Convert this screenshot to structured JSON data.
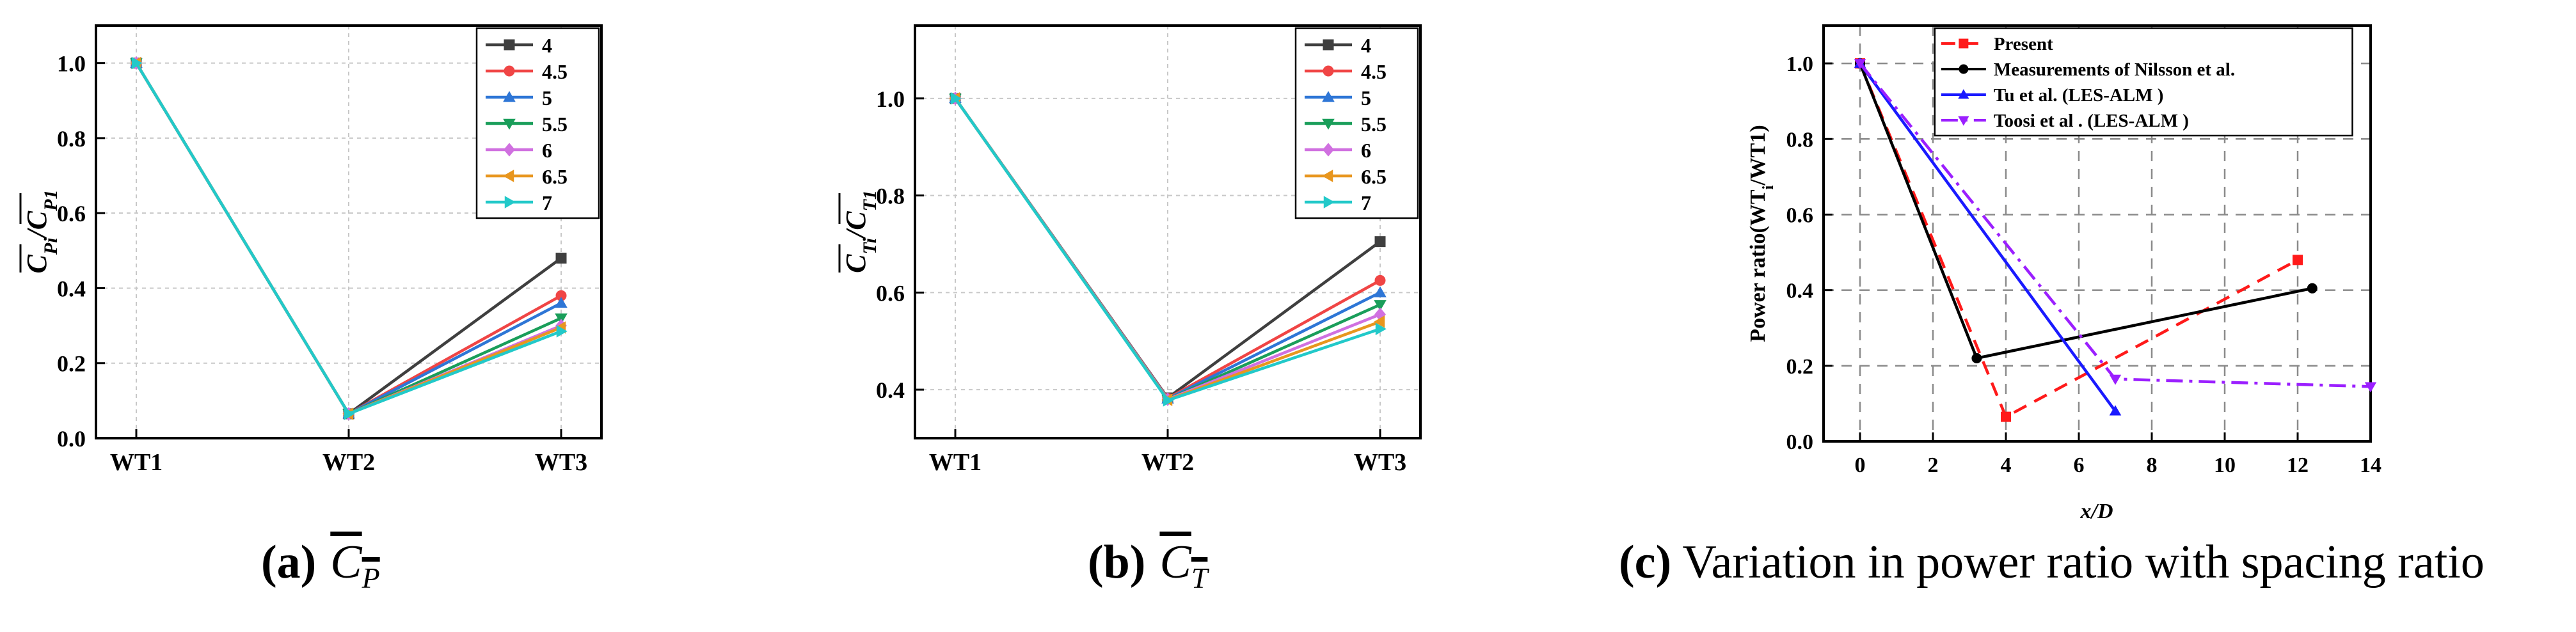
{
  "chart_data": [
    {
      "id": "a",
      "type": "line",
      "ylabel_main": "C",
      "ylabel_sub_num": "Pi",
      "ylabel_sub_den": "P1",
      "categories": [
        "WT1",
        "WT2",
        "WT3"
      ],
      "ylim": [
        0.0,
        1.1
      ],
      "yticks": [
        0.0,
        0.2,
        0.4,
        0.6,
        0.8,
        1.0
      ],
      "ytick_labels": [
        "0.0",
        "0.2",
        "0.4",
        "0.6",
        "0.8",
        "1.0"
      ],
      "grid": true,
      "legend_position": "top-right",
      "series": [
        {
          "name": "4",
          "color": "#3f3f3f",
          "marker": "square",
          "values": [
            1.0,
            0.065,
            0.48
          ]
        },
        {
          "name": "4.5",
          "color": "#f04545",
          "marker": "circle",
          "values": [
            1.0,
            0.065,
            0.38
          ]
        },
        {
          "name": "5",
          "color": "#2e76d6",
          "marker": "triangle-up",
          "values": [
            1.0,
            0.065,
            0.36
          ]
        },
        {
          "name": "5.5",
          "color": "#1a9e5a",
          "marker": "triangle-down",
          "values": [
            1.0,
            0.065,
            0.32
          ]
        },
        {
          "name": "6",
          "color": "#d070e0",
          "marker": "diamond",
          "values": [
            1.0,
            0.065,
            0.3
          ]
        },
        {
          "name": "6.5",
          "color": "#e8961e",
          "marker": "triangle-left",
          "values": [
            1.0,
            0.065,
            0.295
          ]
        },
        {
          "name": "7",
          "color": "#22c9c9",
          "marker": "triangle-right",
          "values": [
            1.0,
            0.065,
            0.285
          ]
        }
      ]
    },
    {
      "id": "b",
      "type": "line",
      "ylabel_main": "C",
      "ylabel_sub_num": "Ti",
      "ylabel_sub_den": "T1",
      "categories": [
        "WT1",
        "WT2",
        "WT3"
      ],
      "ylim": [
        0.3,
        1.15
      ],
      "yticks": [
        0.4,
        0.6,
        0.8,
        1.0
      ],
      "ytick_labels": [
        "0.4",
        "0.6",
        "0.8",
        "1.0"
      ],
      "grid": true,
      "legend_position": "top-right",
      "series": [
        {
          "name": "4",
          "color": "#3f3f3f",
          "marker": "square",
          "values": [
            1.0,
            0.383,
            0.705
          ]
        },
        {
          "name": "4.5",
          "color": "#f04545",
          "marker": "circle",
          "values": [
            1.0,
            0.382,
            0.625
          ]
        },
        {
          "name": "5",
          "color": "#2e76d6",
          "marker": "triangle-up",
          "values": [
            1.0,
            0.381,
            0.6
          ]
        },
        {
          "name": "5.5",
          "color": "#1a9e5a",
          "marker": "triangle-down",
          "values": [
            1.0,
            0.38,
            0.575
          ]
        },
        {
          "name": "6",
          "color": "#d070e0",
          "marker": "diamond",
          "values": [
            1.0,
            0.38,
            0.555
          ]
        },
        {
          "name": "6.5",
          "color": "#e8961e",
          "marker": "triangle-left",
          "values": [
            1.0,
            0.379,
            0.54
          ]
        },
        {
          "name": "7",
          "color": "#22c9c9",
          "marker": "triangle-right",
          "values": [
            1.0,
            0.378,
            0.525
          ]
        }
      ]
    },
    {
      "id": "c",
      "type": "line",
      "xlabel": "x/D",
      "ylabel": "Power ratio(WT",
      "ylabel_sub": "i",
      "ylabel_tail": "/WT1)",
      "xlim": [
        -1,
        14
      ],
      "ylim": [
        0.0,
        1.1
      ],
      "xticks": [
        0,
        2,
        4,
        6,
        8,
        10,
        12,
        14
      ],
      "xtick_labels": [
        "0",
        "2",
        "4",
        "6",
        "8",
        "10",
        "12",
        "14"
      ],
      "yticks": [
        0.0,
        0.2,
        0.4,
        0.6,
        0.8,
        1.0
      ],
      "ytick_labels": [
        "0.0",
        "0.2",
        "0.4",
        "0.6",
        "0.8",
        "1.0"
      ],
      "grid": true,
      "legend_position": "top-right",
      "series": [
        {
          "name": "Present",
          "color": "#ff1a1a",
          "marker": "square",
          "dash": "dash",
          "x": [
            0,
            4,
            12
          ],
          "y": [
            1.0,
            0.065,
            0.48
          ]
        },
        {
          "name": "Measurements of Nilsson et al.",
          "color": "#000000",
          "marker": "circle",
          "dash": "solid",
          "x": [
            0,
            3.2,
            12.4
          ],
          "y": [
            1.0,
            0.22,
            0.405
          ]
        },
        {
          "name": "Tu et al. (LES-ALM )",
          "color": "#1a1aff",
          "marker": "triangle-up",
          "dash": "solid",
          "x": [
            0,
            7,
            7
          ],
          "y": [
            1.0,
            0.08,
            0.08
          ]
        },
        {
          "name": "Toosi et al . (LES-ALM )",
          "color": "#9b1fff",
          "marker": "triangle-down",
          "dash": "dashdot",
          "x": [
            0,
            7,
            14
          ],
          "y": [
            1.0,
            0.165,
            0.145
          ]
        }
      ]
    }
  ],
  "captions": [
    {
      "label": "(a)",
      "symbol": "C",
      "sub": "P"
    },
    {
      "label": "(b)",
      "symbol": "C",
      "sub": "T"
    },
    {
      "label": "(c)",
      "text": "Variation in power ratio with spacing ratio"
    }
  ]
}
